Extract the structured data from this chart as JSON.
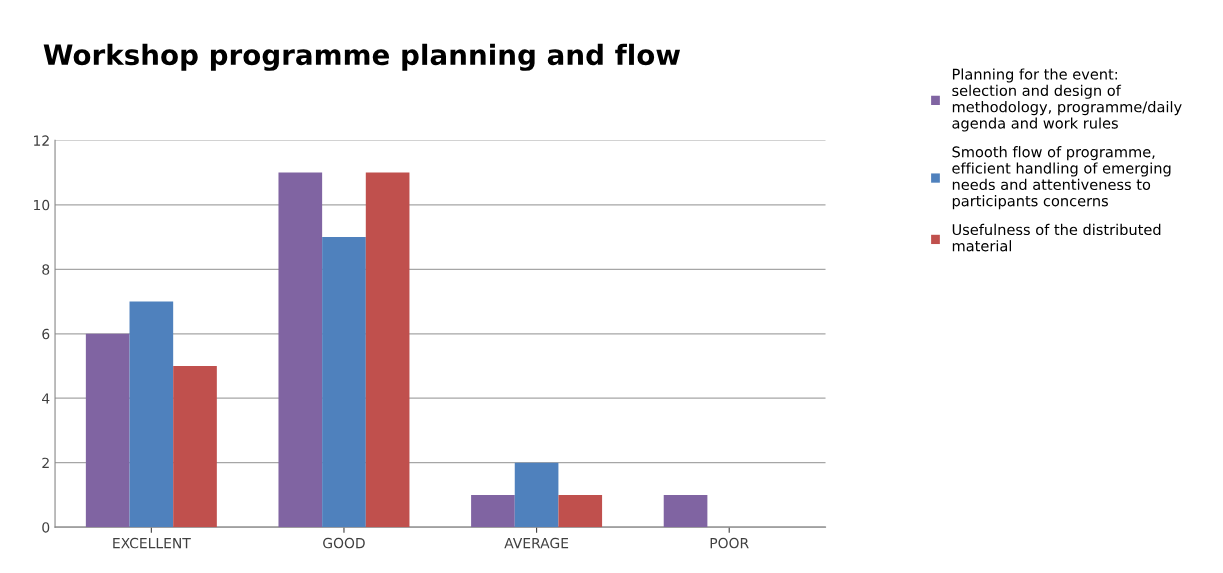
{
  "chart_data": {
    "type": "bar",
    "title": "Workshop programme planning and flow",
    "categories": [
      "EXCELLENT",
      "GOOD",
      "AVERAGE",
      "POOR"
    ],
    "series": [
      {
        "name": "Planning for the event: selection and design of methodology, programme/daily agenda and work rules",
        "color": "#8064a2",
        "values": [
          6,
          11,
          1,
          1
        ]
      },
      {
        "name": "Smooth flow of programme, efficient handling of emerging needs and attentiveness to participants concerns",
        "color": "#4f81bd",
        "values": [
          7,
          9,
          2,
          0
        ]
      },
      {
        "name": "Usefulness of the distributed material",
        "color": "#c0504d",
        "values": [
          5,
          11,
          1,
          0
        ]
      }
    ],
    "ylim": [
      0,
      12
    ],
    "yticks": [
      0,
      2,
      4,
      6,
      8,
      10,
      12
    ],
    "grid": "y",
    "legend": "right"
  }
}
